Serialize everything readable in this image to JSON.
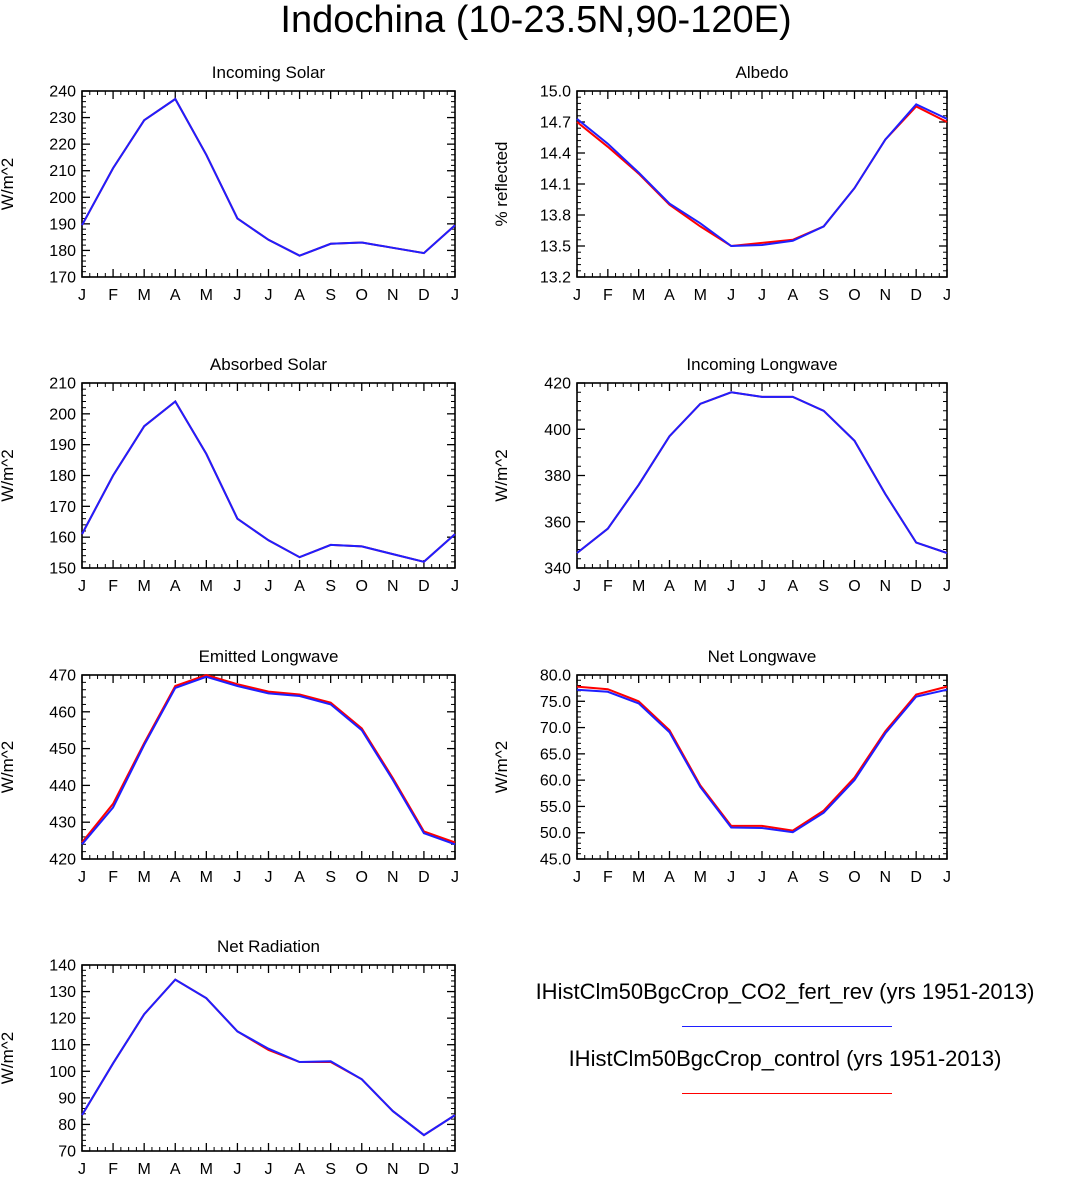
{
  "title": "Indochina (10-23.5N,90-120E)",
  "legend": {
    "entries": [
      {
        "label": "IHistClm50BgcCrop_CO2_fert_rev (yrs 1951-2013)",
        "color": "#1f1fff"
      },
      {
        "label": "IHistClm50BgcCrop_control (yrs 1951-2013)",
        "color": "#ff0000"
      }
    ]
  },
  "chart_data": [
    {
      "type": "line",
      "title": "Incoming Solar",
      "ylabel": "W/m^2",
      "categories": [
        "J",
        "F",
        "M",
        "A",
        "M",
        "J",
        "J",
        "A",
        "S",
        "O",
        "N",
        "D",
        "J"
      ],
      "ylim": [
        170,
        240
      ],
      "yticks": [
        170,
        180,
        190,
        200,
        210,
        220,
        230,
        240
      ],
      "ytick_labels": [
        "170",
        "180",
        "190",
        "200",
        "210",
        "220",
        "230",
        "240"
      ],
      "series": [
        {
          "name": "IHistClm50BgcCrop_control (yrs 1951-2013)",
          "color": "#ff0000",
          "values": [
            189.5,
            211,
            229,
            237,
            216,
            192,
            184,
            178,
            182.5,
            183,
            181,
            179,
            189.5
          ]
        },
        {
          "name": "IHistClm50BgcCrop_CO2_fert_rev (yrs 1951-2013)",
          "color": "#1f1fff",
          "values": [
            189.5,
            211,
            229,
            237,
            216,
            192,
            184,
            178,
            182.5,
            183,
            181,
            179,
            189.5
          ]
        }
      ]
    },
    {
      "type": "line",
      "title": "Albedo",
      "ylabel": "% reflected",
      "categories": [
        "J",
        "F",
        "M",
        "A",
        "M",
        "J",
        "J",
        "A",
        "S",
        "O",
        "N",
        "D",
        "J"
      ],
      "ylim": [
        13.2,
        15.0
      ],
      "yticks": [
        13.2,
        13.5,
        13.8,
        14.1,
        14.4,
        14.7,
        15.0
      ],
      "ytick_labels": [
        "13.2",
        "13.5",
        "13.8",
        "14.1",
        "14.4",
        "14.7",
        "15.0"
      ],
      "series": [
        {
          "name": "IHistClm50BgcCrop_control (yrs 1951-2013)",
          "color": "#ff0000",
          "values": [
            14.7,
            14.46,
            14.2,
            13.9,
            13.69,
            13.5,
            13.53,
            13.56,
            13.69,
            14.06,
            14.53,
            14.85,
            14.7
          ]
        },
        {
          "name": "IHistClm50BgcCrop_CO2_fert_rev (yrs 1951-2013)",
          "color": "#1f1fff",
          "values": [
            14.73,
            14.49,
            14.21,
            13.91,
            13.72,
            13.5,
            13.51,
            13.55,
            13.69,
            14.06,
            14.53,
            14.87,
            14.73
          ]
        }
      ]
    },
    {
      "type": "line",
      "title": "Absorbed Solar",
      "ylabel": "W/m^2",
      "categories": [
        "J",
        "F",
        "M",
        "A",
        "M",
        "J",
        "J",
        "A",
        "S",
        "O",
        "N",
        "D",
        "J"
      ],
      "ylim": [
        150,
        210
      ],
      "yticks": [
        150,
        160,
        170,
        180,
        190,
        200,
        210
      ],
      "ytick_labels": [
        "150",
        "160",
        "170",
        "180",
        "190",
        "200",
        "210"
      ],
      "series": [
        {
          "name": "IHistClm50BgcCrop_control (yrs 1951-2013)",
          "color": "#ff0000",
          "values": [
            161,
            180,
            196,
            204,
            187,
            166,
            159,
            153.5,
            157.5,
            157,
            154.5,
            152,
            161
          ]
        },
        {
          "name": "IHistClm50BgcCrop_CO2_fert_rev (yrs 1951-2013)",
          "color": "#1f1fff",
          "values": [
            161,
            180,
            196,
            204,
            187,
            166,
            159,
            153.5,
            157.5,
            157,
            154.5,
            152,
            161
          ]
        }
      ]
    },
    {
      "type": "line",
      "title": "Incoming Longwave",
      "ylabel": "W/m^2",
      "categories": [
        "J",
        "F",
        "M",
        "A",
        "M",
        "J",
        "J",
        "A",
        "S",
        "O",
        "N",
        "D",
        "J"
      ],
      "ylim": [
        340,
        420
      ],
      "yticks": [
        340,
        360,
        380,
        400,
        420
      ],
      "ytick_labels": [
        "340",
        "360",
        "380",
        "400",
        "420"
      ],
      "series": [
        {
          "name": "IHistClm50BgcCrop_control (yrs 1951-2013)",
          "color": "#ff0000",
          "values": [
            346.5,
            357,
            376,
            397,
            411,
            416,
            414,
            414,
            408,
            395,
            372,
            351,
            346.5
          ]
        },
        {
          "name": "IHistClm50BgcCrop_CO2_fert_rev (yrs 1951-2013)",
          "color": "#1f1fff",
          "values": [
            346.5,
            357,
            376,
            397,
            411,
            416,
            414,
            414,
            408,
            395,
            372,
            351,
            346.5
          ]
        }
      ]
    },
    {
      "type": "line",
      "title": "Emitted Longwave",
      "ylabel": "W/m^2",
      "categories": [
        "J",
        "F",
        "M",
        "A",
        "M",
        "J",
        "J",
        "A",
        "S",
        "O",
        "N",
        "D",
        "J"
      ],
      "ylim": [
        420,
        470
      ],
      "yticks": [
        420,
        430,
        440,
        450,
        460,
        470
      ],
      "ytick_labels": [
        "420",
        "430",
        "440",
        "450",
        "460",
        "470"
      ],
      "series": [
        {
          "name": "IHistClm50BgcCrop_control (yrs 1951-2013)",
          "color": "#ff0000",
          "values": [
            424.5,
            435,
            451.5,
            467,
            470,
            467.5,
            465.5,
            464.7,
            462.5,
            455.5,
            442,
            427.5,
            424.5
          ]
        },
        {
          "name": "IHistClm50BgcCrop_CO2_fert_rev (yrs 1951-2013)",
          "color": "#1f1fff",
          "values": [
            424,
            434,
            451,
            466.5,
            469.5,
            467,
            465,
            464.3,
            462,
            455,
            441.5,
            427,
            424
          ]
        }
      ]
    },
    {
      "type": "line",
      "title": "Net Longwave",
      "ylabel": "W/m^2",
      "categories": [
        "J",
        "F",
        "M",
        "A",
        "M",
        "J",
        "J",
        "A",
        "S",
        "O",
        "N",
        "D",
        "J"
      ],
      "ylim": [
        45.0,
        80.0
      ],
      "yticks": [
        45,
        50,
        55,
        60,
        65,
        70,
        75,
        80
      ],
      "ytick_labels": [
        "45.0",
        "50.0",
        "55.0",
        "60.0",
        "65.0",
        "70.0",
        "75.0",
        "80.0"
      ],
      "series": [
        {
          "name": "IHistClm50BgcCrop_control (yrs 1951-2013)",
          "color": "#ff0000",
          "values": [
            77.8,
            77.3,
            75,
            69.5,
            59,
            51.3,
            51.3,
            50.4,
            54.2,
            60.5,
            69.3,
            76.3,
            77.8
          ]
        },
        {
          "name": "IHistClm50BgcCrop_CO2_fert_rev (yrs 1951-2013)",
          "color": "#1f1fff",
          "values": [
            77.2,
            76.8,
            74.6,
            69.1,
            58.7,
            51,
            50.9,
            50.1,
            53.8,
            60,
            68.9,
            75.9,
            77.2
          ]
        }
      ]
    },
    {
      "type": "line",
      "title": "Net Radiation",
      "ylabel": "W/m^2",
      "categories": [
        "J",
        "F",
        "M",
        "A",
        "M",
        "J",
        "J",
        "A",
        "S",
        "O",
        "N",
        "D",
        "J"
      ],
      "ylim": [
        70,
        140
      ],
      "yticks": [
        70,
        80,
        90,
        100,
        110,
        120,
        130,
        140
      ],
      "ytick_labels": [
        "70",
        "80",
        "90",
        "100",
        "110",
        "120",
        "130",
        "140"
      ],
      "series": [
        {
          "name": "IHistClm50BgcCrop_control (yrs 1951-2013)",
          "color": "#ff0000",
          "values": [
            83.5,
            103,
            121.5,
            134.5,
            127.5,
            115,
            108,
            103.5,
            103.5,
            97,
            85,
            76,
            83.5
          ]
        },
        {
          "name": "IHistClm50BgcCrop_CO2_fert_rev (yrs 1951-2013)",
          "color": "#1f1fff",
          "values": [
            83.5,
            103,
            121.5,
            134.5,
            127.5,
            115,
            108.5,
            103.5,
            103.8,
            97,
            85,
            76,
            83.5
          ]
        }
      ]
    }
  ]
}
